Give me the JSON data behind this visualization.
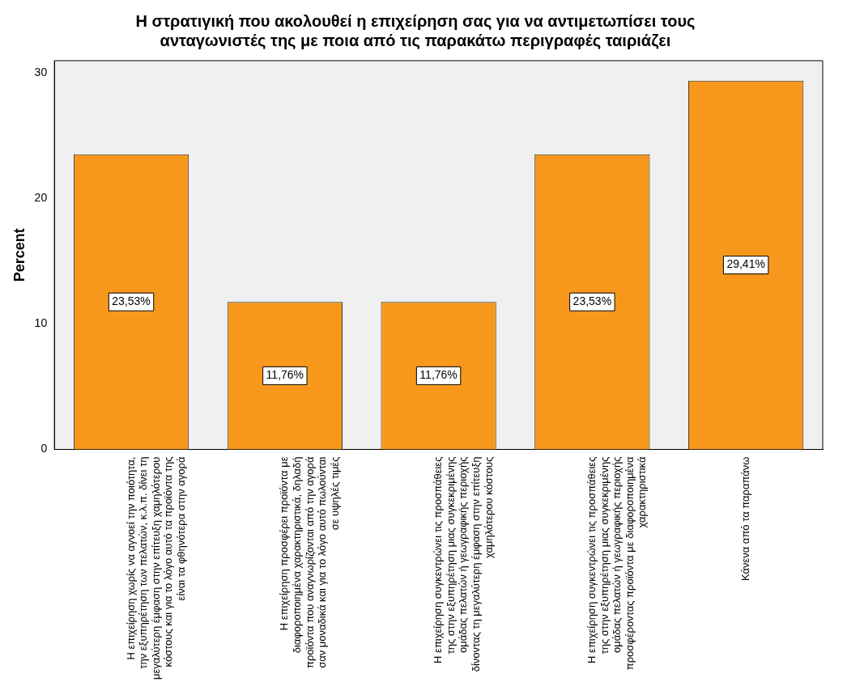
{
  "chart_data": {
    "type": "bar",
    "title": "Η στρατιγική που ακολουθεί η επιχείρηση σας για να αντιμετωπίσει τους ανταγωνιστές της με ποια από τις παρακάτω περιγραφές ταιριάζει",
    "ylabel": "Percent",
    "categories": [
      "Η επιχείρηση χωρίς να αγνοεί την ποιότητα, την εξυπηρέτηση των πελατών, κ.λ.π. δίνει τη μεγαλύτερη έμφαση στην επίτευξη χαμηλότερου κόστους και για το λόγο αυτό τα προϊόντα της είναι τα φθηνότερα στην αγορά",
      "Η επιχείρηση προσφέρει προϊόντα με διαφοροποιημένα χαρακτηριστικά, δηλαδή προϊόντα που αναγνωρίζονται από την αγορά σαν μοναδικά και για το λόγο αυτό πωλούνται σε υψηλές τιμές",
      "Η επιχείρηση συγκεντρώνει τις προσπάθειες της στην εξυπηρέτηση μιας συγκεκριμένης ομάδας πελατών ή γεωγραφικής περιοχής δίνοντας τη μεγαλύτερη έμφαση στην επίτευξη χαμηλότερου κόστους",
      "Η επιχείρηση συγκεντρώνει τις προσπάθειες της στην εξυπηρέτηση μιας συγκεκριμένης ομάδας πελατών ή γεωγραφικής περιοχής προσφέροντας προϊόντα με διαφοροποιημένα χαρακτηριστικά",
      "Κάνενα από τα παραπάνω"
    ],
    "values": [
      23.53,
      11.76,
      11.76,
      23.53,
      29.41
    ],
    "value_labels": [
      "23,53%",
      "11,76%",
      "11,76%",
      "23,53%",
      "29,41%"
    ],
    "color": "#f7981d",
    "ylim": [
      0,
      31
    ],
    "yticks": [
      0,
      10,
      20,
      30
    ],
    "grid": false,
    "legend": false
  }
}
